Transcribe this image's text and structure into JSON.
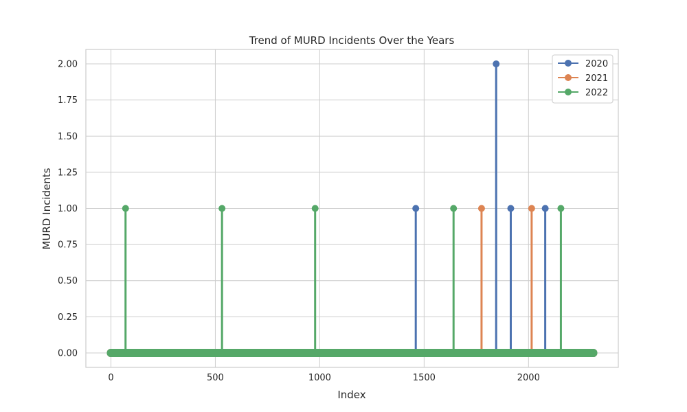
{
  "chart_data": {
    "type": "line",
    "title": "Trend of MURD Incidents Over the Years",
    "xlabel": "Index",
    "ylabel": "MURD Incidents",
    "xlim": [
      -120,
      2430
    ],
    "ylim": [
      -0.1,
      2.1
    ],
    "x_ticks": [
      0,
      500,
      1000,
      1500,
      2000
    ],
    "y_ticks": [
      0.0,
      0.25,
      0.5,
      0.75,
      1.0,
      1.25,
      1.5,
      1.75,
      2.0
    ],
    "grid": true,
    "legend_position": "top-right",
    "x_range": [
      0,
      2310
    ],
    "series": [
      {
        "name": "2020",
        "color": "#4c72b0",
        "spikes": [
          {
            "x": 1460,
            "y": 1
          },
          {
            "x": 1845,
            "y": 2
          },
          {
            "x": 1915,
            "y": 1
          },
          {
            "x": 2080,
            "y": 1
          }
        ]
      },
      {
        "name": "2021",
        "color": "#dd8452",
        "spikes": [
          {
            "x": 1775,
            "y": 1
          },
          {
            "x": 2015,
            "y": 1
          }
        ]
      },
      {
        "name": "2022",
        "color": "#55a868",
        "spikes": [
          {
            "x": 70,
            "y": 1
          },
          {
            "x": 532,
            "y": 1
          },
          {
            "x": 978,
            "y": 1
          },
          {
            "x": 1641,
            "y": 1
          },
          {
            "x": 2155,
            "y": 1
          }
        ]
      }
    ]
  }
}
